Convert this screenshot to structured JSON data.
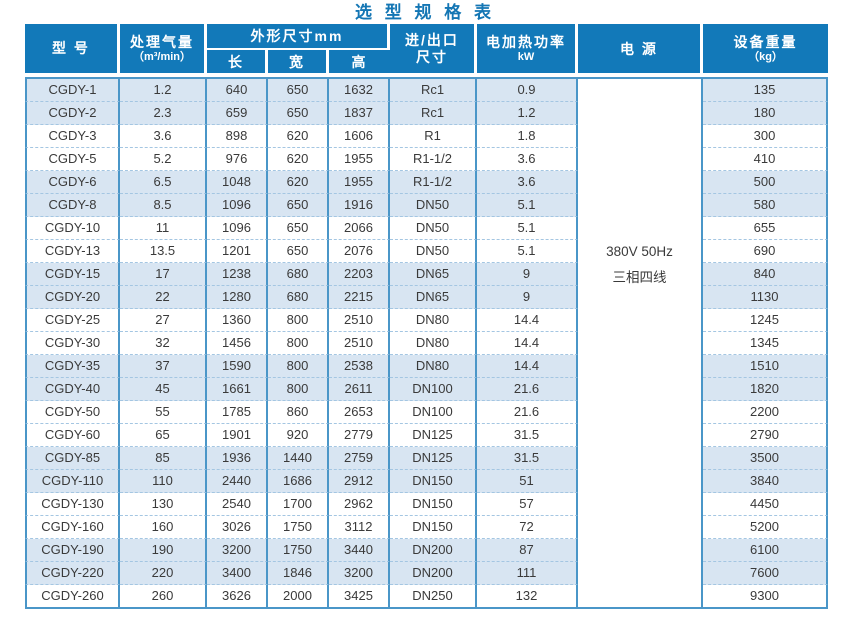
{
  "title": "选 型 规 格 表",
  "table": {
    "header": {
      "model": "型 号",
      "airflow_line1": "处理气量",
      "airflow_line2": "（m³/min）",
      "dimensions": "外形尺寸mm",
      "length": "长",
      "width": "宽",
      "height": "高",
      "inlet_outlet_line1": "进/出口",
      "inlet_outlet_line2": "尺寸",
      "heating_power_line1": "电加热功率",
      "heating_power_line2": "kW",
      "power_supply": "电 源",
      "weight_line1": "设备重量",
      "weight_line2": "（kg）"
    },
    "power_supply_value": {
      "line1": "380V 50Hz",
      "line2": "三相四线"
    },
    "rows": [
      {
        "model": "CGDY-1",
        "airflow": "1.2",
        "length": "640",
        "width": "650",
        "height": "1632",
        "port": "Rc1",
        "power_kw": "0.9",
        "weight": "135"
      },
      {
        "model": "CGDY-2",
        "airflow": "2.3",
        "length": "659",
        "width": "650",
        "height": "1837",
        "port": "Rc1",
        "power_kw": "1.2",
        "weight": "180"
      },
      {
        "model": "CGDY-3",
        "airflow": "3.6",
        "length": "898",
        "width": "620",
        "height": "1606",
        "port": "R1",
        "power_kw": "1.8",
        "weight": "300"
      },
      {
        "model": "CGDY-5",
        "airflow": "5.2",
        "length": "976",
        "width": "620",
        "height": "1955",
        "port": "R1-1/2",
        "power_kw": "3.6",
        "weight": "410"
      },
      {
        "model": "CGDY-6",
        "airflow": "6.5",
        "length": "1048",
        "width": "620",
        "height": "1955",
        "port": "R1-1/2",
        "power_kw": "3.6",
        "weight": "500"
      },
      {
        "model": "CGDY-8",
        "airflow": "8.5",
        "length": "1096",
        "width": "650",
        "height": "1916",
        "port": "DN50",
        "power_kw": "5.1",
        "weight": "580"
      },
      {
        "model": "CGDY-10",
        "airflow": "11",
        "length": "1096",
        "width": "650",
        "height": "2066",
        "port": "DN50",
        "power_kw": "5.1",
        "weight": "655"
      },
      {
        "model": "CGDY-13",
        "airflow": "13.5",
        "length": "1201",
        "width": "650",
        "height": "2076",
        "port": "DN50",
        "power_kw": "5.1",
        "weight": "690"
      },
      {
        "model": "CGDY-15",
        "airflow": "17",
        "length": "1238",
        "width": "680",
        "height": "2203",
        "port": "DN65",
        "power_kw": "9",
        "weight": "840"
      },
      {
        "model": "CGDY-20",
        "airflow": "22",
        "length": "1280",
        "width": "680",
        "height": "2215",
        "port": "DN65",
        "power_kw": "9",
        "weight": "1130"
      },
      {
        "model": "CGDY-25",
        "airflow": "27",
        "length": "1360",
        "width": "800",
        "height": "2510",
        "port": "DN80",
        "power_kw": "14.4",
        "weight": "1245"
      },
      {
        "model": "CGDY-30",
        "airflow": "32",
        "length": "1456",
        "width": "800",
        "height": "2510",
        "port": "DN80",
        "power_kw": "14.4",
        "weight": "1345"
      },
      {
        "model": "CGDY-35",
        "airflow": "37",
        "length": "1590",
        "width": "800",
        "height": "2538",
        "port": "DN80",
        "power_kw": "14.4",
        "weight": "1510"
      },
      {
        "model": "CGDY-40",
        "airflow": "45",
        "length": "1661",
        "width": "800",
        "height": "2611",
        "port": "DN100",
        "power_kw": "21.6",
        "weight": "1820"
      },
      {
        "model": "CGDY-50",
        "airflow": "55",
        "length": "1785",
        "width": "860",
        "height": "2653",
        "port": "DN100",
        "power_kw": "21.6",
        "weight": "2200"
      },
      {
        "model": "CGDY-60",
        "airflow": "65",
        "length": "1901",
        "width": "920",
        "height": "2779",
        "port": "DN125",
        "power_kw": "31.5",
        "weight": "2790"
      },
      {
        "model": "CGDY-85",
        "airflow": "85",
        "length": "1936",
        "width": "1440",
        "height": "2759",
        "port": "DN125",
        "power_kw": "31.5",
        "weight": "3500"
      },
      {
        "model": "CGDY-110",
        "airflow": "110",
        "length": "2440",
        "width": "1686",
        "height": "2912",
        "port": "DN150",
        "power_kw": "51",
        "weight": "3840"
      },
      {
        "model": "CGDY-130",
        "airflow": "130",
        "length": "2540",
        "width": "1700",
        "height": "2962",
        "port": "DN150",
        "power_kw": "57",
        "weight": "4450"
      },
      {
        "model": "CGDY-160",
        "airflow": "160",
        "length": "3026",
        "width": "1750",
        "height": "3112",
        "port": "DN150",
        "power_kw": "72",
        "weight": "5200"
      },
      {
        "model": "CGDY-190",
        "airflow": "190",
        "length": "3200",
        "width": "1750",
        "height": "3440",
        "port": "DN200",
        "power_kw": "87",
        "weight": "6100"
      },
      {
        "model": "CGDY-220",
        "airflow": "220",
        "length": "3400",
        "width": "1846",
        "height": "3200",
        "port": "DN200",
        "power_kw": "111",
        "weight": "7600"
      },
      {
        "model": "CGDY-260",
        "airflow": "260",
        "length": "3626",
        "width": "2000",
        "height": "3425",
        "port": "DN250",
        "power_kw": "132",
        "weight": "9300"
      }
    ],
    "colors": {
      "header_bg": "#1279b9",
      "header_text": "#ffffff",
      "title_color": "#1476b4",
      "row_shade": "#d8e5f2",
      "divider": "#4a96c8",
      "dashed": "#a4c6e2",
      "text": "#3a3a3a"
    }
  }
}
